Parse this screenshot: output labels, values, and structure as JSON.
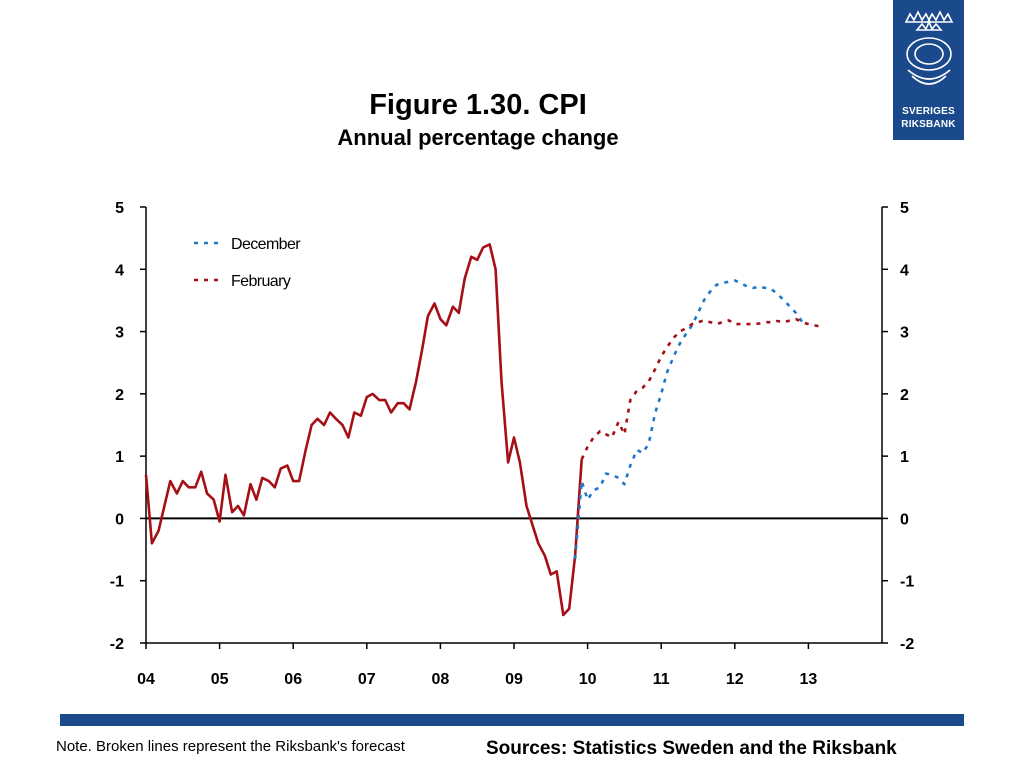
{
  "header": {
    "title": "Figure 1.30. CPI",
    "subtitle": "Annual percentage change"
  },
  "logo": {
    "line1": "SVERIGES",
    "line2": "RIKSBANK",
    "color": "#1b4a8c"
  },
  "footer": {
    "note": "Note. Broken lines represent the Riksbank's forecast",
    "sources": "Sources: Statistics Sweden and the Riksbank",
    "bar_color": "#1b4a8c"
  },
  "chart_data": {
    "type": "line",
    "title": "Figure 1.30. CPI",
    "subtitle": "Annual percentage change",
    "xlabel": "",
    "ylabel": "",
    "x_ticks": [
      "04",
      "05",
      "06",
      "07",
      "08",
      "09",
      "10",
      "11",
      "12",
      "13"
    ],
    "y_ticks": [
      5,
      4,
      3,
      2,
      1,
      0,
      -1,
      -2
    ],
    "ylim": [
      -2,
      5
    ],
    "xlim": [
      2004.0,
      2014.0
    ],
    "grid": false,
    "legend_position": "top-left",
    "series": [
      {
        "name": "",
        "style": "solid",
        "color": "#a50f15",
        "x": [
          2004.0,
          2004.08,
          2004.17,
          2004.25,
          2004.33,
          2004.42,
          2004.5,
          2004.58,
          2004.67,
          2004.75,
          2004.83,
          2004.92,
          2005.0,
          2005.08,
          2005.17,
          2005.25,
          2005.33,
          2005.42,
          2005.5,
          2005.58,
          2005.67,
          2005.75,
          2005.83,
          2005.92,
          2006.0,
          2006.08,
          2006.17,
          2006.25,
          2006.33,
          2006.42,
          2006.5,
          2006.58,
          2006.67,
          2006.75,
          2006.83,
          2006.92,
          2007.0,
          2007.08,
          2007.17,
          2007.25,
          2007.33,
          2007.42,
          2007.5,
          2007.58,
          2007.67,
          2007.75,
          2007.83,
          2007.92,
          2008.0,
          2008.08,
          2008.17,
          2008.25,
          2008.33,
          2008.42,
          2008.5,
          2008.58,
          2008.67,
          2008.75,
          2008.83,
          2008.92,
          2009.0,
          2009.08,
          2009.17,
          2009.25,
          2009.33,
          2009.42,
          2009.5,
          2009.58,
          2009.67,
          2009.75,
          2009.83,
          2009.92
        ],
        "values": [
          0.7,
          -0.4,
          -0.2,
          0.2,
          0.6,
          0.4,
          0.6,
          0.5,
          0.5,
          0.75,
          0.4,
          0.3,
          -0.05,
          0.7,
          0.1,
          0.2,
          0.05,
          0.55,
          0.3,
          0.65,
          0.6,
          0.5,
          0.8,
          0.85,
          0.6,
          0.6,
          1.1,
          1.5,
          1.6,
          1.5,
          1.7,
          1.6,
          1.5,
          1.3,
          1.7,
          1.65,
          1.95,
          2.0,
          1.9,
          1.9,
          1.7,
          1.85,
          1.85,
          1.75,
          2.2,
          2.7,
          3.25,
          3.45,
          3.2,
          3.1,
          3.4,
          3.3,
          3.85,
          4.2,
          4.15,
          4.35,
          4.4,
          4.0,
          2.2,
          0.9,
          1.3,
          0.9,
          0.2,
          -0.1,
          -0.4,
          -0.6,
          -0.9,
          -0.85,
          -1.55,
          -1.45,
          -0.6,
          0.95
        ]
      },
      {
        "name": "December",
        "style": "dashed",
        "color": "#1f77c8",
        "x": [
          2009.83,
          2009.92,
          2010.0,
          2010.08,
          2010.17,
          2010.25,
          2010.33,
          2010.42,
          2010.5,
          2010.58,
          2010.67,
          2010.75,
          2010.83,
          2010.92,
          2011.0,
          2011.08,
          2011.17,
          2011.25,
          2011.33,
          2011.42,
          2011.5,
          2011.58,
          2011.67,
          2011.75,
          2011.83,
          2011.92,
          2012.0,
          2012.08,
          2012.17,
          2012.25,
          2012.33,
          2012.42,
          2012.5,
          2012.58,
          2012.67,
          2012.75,
          2012.83,
          2012.92
        ],
        "values": [
          -0.65,
          0.6,
          0.3,
          0.45,
          0.5,
          0.72,
          0.7,
          0.65,
          0.55,
          0.85,
          1.1,
          1.05,
          1.2,
          1.7,
          2.0,
          2.35,
          2.6,
          2.8,
          2.95,
          3.1,
          3.3,
          3.5,
          3.65,
          3.75,
          3.78,
          3.8,
          3.82,
          3.78,
          3.72,
          3.7,
          3.72,
          3.7,
          3.68,
          3.6,
          3.5,
          3.4,
          3.3,
          3.15
        ]
      },
      {
        "name": "February",
        "style": "dashed",
        "color": "#a50f15",
        "x": [
          2009.92,
          2010.0,
          2010.08,
          2010.17,
          2010.25,
          2010.33,
          2010.42,
          2010.5,
          2010.58,
          2010.67,
          2010.75,
          2010.83,
          2010.92,
          2011.0,
          2011.08,
          2011.17,
          2011.25,
          2011.33,
          2011.42,
          2011.5,
          2011.58,
          2011.67,
          2011.75,
          2011.83,
          2011.92,
          2012.0,
          2012.08,
          2012.17,
          2012.25,
          2012.33,
          2012.42,
          2012.5,
          2012.58,
          2012.67,
          2012.75,
          2012.83,
          2012.92,
          2013.0,
          2013.08,
          2013.17
        ],
        "values": [
          0.95,
          1.15,
          1.3,
          1.4,
          1.35,
          1.3,
          1.55,
          1.35,
          1.9,
          2.05,
          2.1,
          2.2,
          2.4,
          2.6,
          2.75,
          2.9,
          3.0,
          3.05,
          3.12,
          3.15,
          3.18,
          3.15,
          3.12,
          3.15,
          3.18,
          3.12,
          3.12,
          3.12,
          3.12,
          3.13,
          3.15,
          3.15,
          3.17,
          3.15,
          3.18,
          3.2,
          3.15,
          3.12,
          3.1,
          3.08
        ]
      }
    ]
  }
}
